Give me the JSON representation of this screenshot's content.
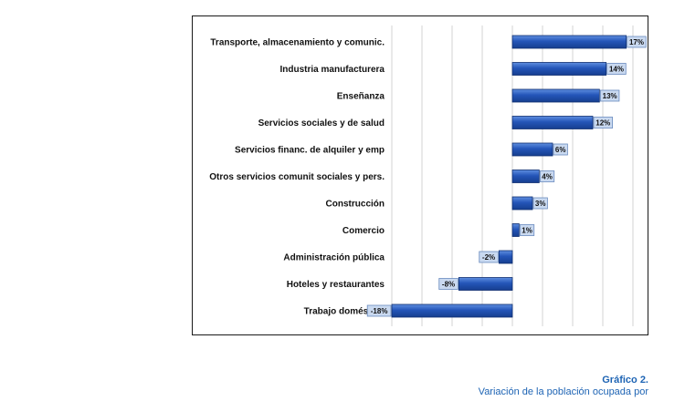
{
  "chart_data": {
    "type": "bar",
    "orientation": "horizontal",
    "categories": [
      "Transporte, almacenamiento y comunic.",
      "Industria manufacturera",
      "Enseñanza",
      "Servicios sociales y de salud",
      "Servicios financ. de alquiler y emp",
      "Otros servicios comunit sociales y pers.",
      "Construcción",
      "Comercio",
      "Administración pública",
      "Hoteles y restaurantes",
      "Trabajo doméstico"
    ],
    "values": [
      17,
      14,
      13,
      12,
      6,
      4,
      3,
      1,
      -2,
      -8,
      -18
    ],
    "data_labels": [
      "17%",
      "14%",
      "13%",
      "12%",
      "6%",
      "4%",
      "3%",
      "1%",
      "-2%",
      "-8%",
      "-18%"
    ],
    "xlim": [
      -18,
      18
    ],
    "grid": true,
    "bar_color": "#2455b8",
    "label_bg_color": "#c9d9f0"
  },
  "caption": {
    "title": "Gráfico 2.",
    "text": "Variación de la población ocupada por"
  }
}
